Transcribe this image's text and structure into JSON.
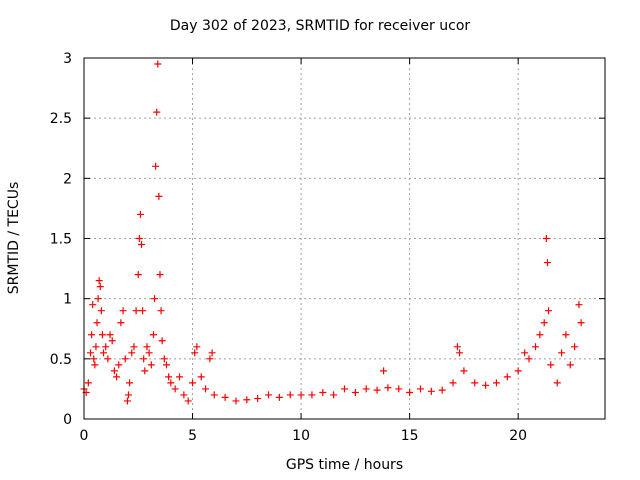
{
  "chart_data": {
    "type": "scatter",
    "title": "Day 302 of 2023, SRMTID for receiver ucor",
    "xlabel": "GPS time / hours",
    "ylabel": "SRMTID / TECUs",
    "xlim": [
      0,
      24
    ],
    "ylim": [
      0,
      3
    ],
    "xticks": [
      0,
      5,
      10,
      15,
      20
    ],
    "xtick_labels": [
      "0",
      "5",
      "10",
      "15",
      "20"
    ],
    "yticks": [
      0,
      0.5,
      1,
      1.5,
      2,
      2.5,
      3
    ],
    "ytick_labels": [
      "0",
      "0.5",
      "1",
      "1.5",
      "2",
      "2.5",
      "3"
    ],
    "grid": true,
    "marker": "+",
    "series": [
      {
        "name": "SRMTID",
        "color": "#ff0000",
        "x": [
          0.0,
          0.1,
          0.2,
          0.3,
          0.35,
          0.4,
          0.45,
          0.5,
          0.55,
          0.6,
          0.65,
          0.7,
          0.75,
          0.8,
          0.85,
          0.9,
          1.0,
          1.1,
          1.2,
          1.3,
          1.4,
          1.5,
          1.6,
          1.7,
          1.8,
          1.9,
          2.0,
          2.05,
          2.1,
          2.2,
          2.3,
          2.4,
          2.5,
          2.55,
          2.6,
          2.65,
          2.7,
          2.75,
          2.8,
          2.9,
          3.0,
          3.1,
          3.2,
          3.25,
          3.3,
          3.35,
          3.4,
          3.45,
          3.5,
          3.55,
          3.6,
          3.7,
          3.8,
          3.9,
          4.0,
          4.2,
          4.4,
          4.6,
          4.8,
          5.0,
          5.1,
          5.2,
          5.4,
          5.6,
          5.8,
          5.9,
          6.0,
          6.5,
          7.0,
          7.5,
          8.0,
          8.5,
          9.0,
          9.5,
          10.0,
          10.5,
          11.0,
          11.5,
          12.0,
          12.5,
          13.0,
          13.5,
          13.8,
          14.0,
          14.5,
          15.0,
          15.5,
          16.0,
          16.5,
          17.0,
          17.2,
          17.3,
          17.5,
          18.0,
          18.5,
          19.0,
          19.5,
          20.0,
          20.3,
          20.5,
          20.8,
          21.0,
          21.2,
          21.3,
          21.35,
          21.4,
          21.5,
          21.8,
          22.0,
          22.2,
          22.4,
          22.6,
          22.8,
          22.9
        ],
        "y": [
          0.25,
          0.22,
          0.3,
          0.55,
          0.7,
          0.95,
          0.5,
          0.45,
          0.6,
          0.8,
          1.0,
          1.15,
          1.1,
          0.9,
          0.7,
          0.55,
          0.6,
          0.5,
          0.7,
          0.65,
          0.4,
          0.35,
          0.45,
          0.8,
          0.9,
          0.5,
          0.15,
          0.2,
          0.3,
          0.55,
          0.6,
          0.9,
          1.2,
          1.5,
          1.7,
          1.45,
          0.9,
          0.5,
          0.4,
          0.6,
          0.55,
          0.45,
          0.7,
          1.0,
          2.1,
          2.55,
          2.95,
          1.85,
          1.2,
          0.9,
          0.65,
          0.5,
          0.45,
          0.35,
          0.3,
          0.25,
          0.35,
          0.2,
          0.15,
          0.3,
          0.55,
          0.6,
          0.35,
          0.25,
          0.5,
          0.55,
          0.2,
          0.18,
          0.15,
          0.16,
          0.17,
          0.2,
          0.18,
          0.2,
          0.2,
          0.2,
          0.22,
          0.2,
          0.25,
          0.22,
          0.25,
          0.24,
          0.4,
          0.26,
          0.25,
          0.22,
          0.25,
          0.23,
          0.24,
          0.3,
          0.6,
          0.55,
          0.4,
          0.3,
          0.28,
          0.3,
          0.35,
          0.4,
          0.55,
          0.5,
          0.6,
          0.7,
          0.8,
          1.5,
          1.3,
          0.9,
          0.45,
          0.3,
          0.55,
          0.7,
          0.45,
          0.6,
          0.95,
          0.8
        ]
      }
    ]
  }
}
